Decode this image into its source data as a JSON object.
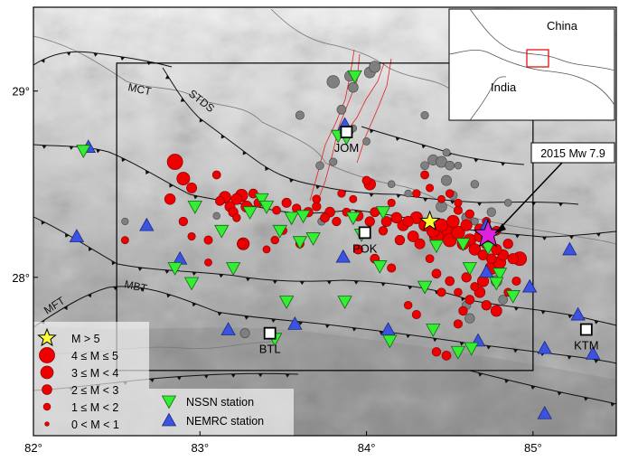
{
  "map": {
    "extent": {
      "lon": [
        82.0,
        85.5
      ],
      "lat": [
        27.15,
        29.45
      ]
    },
    "x_ticks": [
      {
        "value": 82,
        "label": "82°"
      },
      {
        "value": 83,
        "label": "83°"
      },
      {
        "value": 84,
        "label": "84°"
      },
      {
        "value": 85,
        "label": "85°"
      }
    ],
    "y_ticks": [
      {
        "value": 29,
        "label": "29°"
      },
      {
        "value": 28,
        "label": "28°"
      }
    ],
    "study_box": {
      "lon": [
        82.5,
        85.0
      ],
      "lat": [
        27.5,
        29.15
      ]
    },
    "colors": {
      "eq_fill": "#ee0000",
      "eq_gray": "#7f7f7f",
      "nssn": "#33ee33",
      "nemrc": "#3b53e0",
      "star_small": "#ffff33",
      "star_big": "#dd22dd",
      "fault": "#111111",
      "river": "#e22222",
      "relief_light": "#f0f0f0",
      "relief_dark": "#8a8a8a"
    },
    "fault_labels": [
      "MCT",
      "STDS",
      "MBT",
      "MFT"
    ],
    "cities": [
      {
        "name": "JOM",
        "lon": 83.88,
        "lat": 28.78
      },
      {
        "name": "POK",
        "lon": 83.99,
        "lat": 28.24
      },
      {
        "name": "BTL",
        "lon": 83.42,
        "lat": 27.7
      },
      {
        "name": "KTM",
        "lon": 85.32,
        "lat": 27.72
      }
    ],
    "annotation": {
      "label": "2015  Mw 7.9",
      "lon": 84.73,
      "lat": 28.23
    },
    "mainshock_star": {
      "lon": 84.73,
      "lat": 28.23
    },
    "m5_star": {
      "lon": 84.38,
      "lat": 28.3
    }
  },
  "inset": {
    "labels": [
      "China",
      "India"
    ]
  },
  "legend": {
    "magnitude": [
      {
        "symbol": "star",
        "label": "M > 5"
      },
      {
        "symbol": "circle",
        "size": 4.5,
        "label": "4 ≤ M ≤ 5"
      },
      {
        "symbol": "circle",
        "size": 3.5,
        "label": "3 ≤ M < 4"
      },
      {
        "symbol": "circle",
        "size": 2.5,
        "label": "2 ≤ M < 3"
      },
      {
        "symbol": "circle",
        "size": 1.5,
        "label": "1 ≤ M < 2"
      },
      {
        "symbol": "circle",
        "size": 0.5,
        "label": "0 < M < 1"
      }
    ],
    "stations": [
      {
        "network": "NSSN",
        "label": "NSSN station"
      },
      {
        "network": "NEMRC",
        "label": "NEMRC station"
      }
    ]
  },
  "stations": {
    "NSSN": [
      [
        82.3,
        28.68
      ],
      [
        82.97,
        28.38
      ],
      [
        83.13,
        28.25
      ],
      [
        83.3,
        28.35
      ],
      [
        83.37,
        28.42
      ],
      [
        83.4,
        28.38
      ],
      [
        83.55,
        28.32
      ],
      [
        83.62,
        28.33
      ],
      [
        83.68,
        28.21
      ],
      [
        83.6,
        28.19
      ],
      [
        83.48,
        28.25
      ],
      [
        83.2,
        28.05
      ],
      [
        82.85,
        28.05
      ],
      [
        82.95,
        27.97
      ],
      [
        83.52,
        27.87
      ],
      [
        83.87,
        27.87
      ],
      [
        83.92,
        28.32
      ],
      [
        83.97,
        28.23
      ],
      [
        84.1,
        28.35
      ],
      [
        84.08,
        28.06
      ],
      [
        84.14,
        27.66
      ],
      [
        84.35,
        27.95
      ],
      [
        84.42,
        28.17
      ],
      [
        84.4,
        27.72
      ],
      [
        84.55,
        27.6
      ],
      [
        84.58,
        28.18
      ],
      [
        84.62,
        28.05
      ],
      [
        84.73,
        28.16
      ],
      [
        84.8,
        28.02
      ],
      [
        84.88,
        27.9
      ],
      [
        84.78,
        27.97
      ],
      [
        84.63,
        27.62
      ],
      [
        83.45,
        27.67
      ],
      [
        83.83,
        28.76
      ],
      [
        83.93,
        29.08
      ],
      [
        83.88,
        28.75
      ]
    ],
    "NEMRC": [
      [
        82.33,
        28.7
      ],
      [
        82.26,
        28.22
      ],
      [
        82.68,
        28.28
      ],
      [
        82.88,
        28.1
      ],
      [
        83.17,
        27.72
      ],
      [
        83.57,
        27.75
      ],
      [
        83.86,
        28.11
      ],
      [
        83.87,
        28.82
      ],
      [
        84.13,
        27.72
      ],
      [
        84.67,
        27.66
      ],
      [
        84.72,
        28.28
      ],
      [
        84.72,
        28.03
      ],
      [
        84.98,
        27.95
      ],
      [
        85.07,
        27.62
      ],
      [
        85.07,
        27.27
      ],
      [
        85.22,
        28.15
      ],
      [
        85.27,
        27.8
      ],
      [
        85.36,
        27.59
      ]
    ]
  },
  "earthquakes": [
    [
      82.85,
      28.62,
      4.5
    ],
    [
      82.9,
      28.53,
      3.6
    ],
    [
      82.82,
      28.42,
      2.8
    ],
    [
      82.95,
      28.48,
      2.6
    ],
    [
      83.1,
      28.55,
      1.9
    ],
    [
      82.9,
      28.3,
      2.1
    ],
    [
      83.2,
      28.35,
      2.4
    ],
    [
      83.15,
      28.43,
      3.2
    ],
    [
      83.25,
      28.44,
      3.4
    ],
    [
      83.28,
      28.38,
      3.0
    ],
    [
      83.22,
      28.42,
      2.9
    ],
    [
      83.18,
      28.38,
      2.6
    ],
    [
      83.12,
      28.41,
      2.2
    ],
    [
      83.32,
      28.45,
      2.2
    ],
    [
      83.35,
      28.4,
      2.1
    ],
    [
      83.22,
      28.32,
      1.8
    ],
    [
      82.95,
      28.22,
      1.7
    ],
    [
      83.05,
      28.2,
      2.0
    ],
    [
      83.25,
      28.18,
      2.2
    ],
    [
      83.46,
      28.36,
      1.9
    ],
    [
      83.52,
      28.4,
      2.3
    ],
    [
      83.58,
      28.37,
      2.1
    ],
    [
      83.65,
      28.35,
      2.4
    ],
    [
      83.7,
      28.38,
      2.1
    ],
    [
      83.78,
      28.35,
      2.5
    ],
    [
      83.75,
      28.32,
      2.2
    ],
    [
      83.82,
      28.3,
      2.1
    ],
    [
      83.88,
      28.35,
      1.9
    ],
    [
      83.95,
      28.33,
      2.6
    ],
    [
      84.02,
      28.3,
      2.4
    ],
    [
      84.05,
      28.35,
      2.3
    ],
    [
      84.12,
      28.3,
      2.6
    ],
    [
      84.18,
      28.32,
      2.8
    ],
    [
      84.22,
      28.28,
      3.0
    ],
    [
      84.25,
      28.3,
      2.7
    ],
    [
      84.3,
      28.32,
      3.3
    ],
    [
      84.35,
      28.28,
      3.2
    ],
    [
      84.4,
      28.25,
      3.6
    ],
    [
      84.42,
      28.22,
      3.9
    ],
    [
      84.45,
      28.28,
      3.5
    ],
    [
      84.48,
      28.25,
      4.2
    ],
    [
      84.5,
      28.2,
      3.8
    ],
    [
      84.52,
      28.3,
      3.4
    ],
    [
      84.55,
      28.24,
      3.7
    ],
    [
      84.58,
      28.18,
      3.2
    ],
    [
      84.6,
      28.28,
      3.0
    ],
    [
      84.62,
      28.2,
      3.4
    ],
    [
      84.65,
      28.15,
      3.1
    ],
    [
      84.68,
      28.22,
      2.9
    ],
    [
      84.7,
      28.12,
      2.6
    ],
    [
      84.72,
      28.18,
      2.8
    ],
    [
      84.75,
      28.1,
      2.5
    ],
    [
      84.78,
      28.15,
      2.7
    ],
    [
      84.8,
      28.08,
      3.3
    ],
    [
      84.82,
      28.12,
      2.8
    ],
    [
      84.85,
      28.18,
      2.4
    ],
    [
      84.88,
      28.1,
      2.7
    ],
    [
      84.92,
      28.1,
      3.9
    ],
    [
      84.75,
      28.05,
      3.5
    ],
    [
      84.7,
      27.98,
      3.0
    ],
    [
      84.68,
      27.92,
      2.8
    ],
    [
      84.62,
      27.88,
      2.2
    ],
    [
      84.58,
      27.82,
      2.1
    ],
    [
      84.5,
      27.98,
      2.2
    ],
    [
      84.45,
      27.92,
      2.0
    ],
    [
      84.72,
      27.85,
      2.4
    ],
    [
      84.78,
      27.82,
      2.9
    ],
    [
      84.55,
      27.75,
      2.0
    ],
    [
      84.48,
      27.58,
      2.2
    ],
    [
      84.42,
      27.6,
      2.1
    ],
    [
      84.3,
      27.8,
      2.0
    ],
    [
      84.25,
      27.85,
      1.8
    ],
    [
      84.15,
      28.05,
      2.0
    ],
    [
      84.05,
      28.1,
      2.2
    ],
    [
      83.95,
      28.15,
      2.3
    ],
    [
      84.3,
      28.45,
      1.8
    ],
    [
      84.35,
      28.55,
      1.9
    ],
    [
      84.38,
      28.48,
      1.7
    ],
    [
      84.45,
      28.42,
      1.6
    ],
    [
      84.5,
      28.45,
      1.8
    ],
    [
      84.55,
      28.4,
      1.7
    ],
    [
      84.02,
      28.5,
      3.1
    ],
    [
      84.0,
      28.52,
      2.0
    ],
    [
      83.6,
      28.18,
      2.0
    ],
    [
      83.45,
      28.2,
      1.8
    ],
    [
      83.4,
      28.15,
      1.6
    ],
    [
      83.26,
      28.18,
      3.3
    ],
    [
      83.7,
      28.42,
      1.9
    ],
    [
      83.85,
      28.45,
      1.7
    ],
    [
      84.28,
      28.22,
      2.9
    ],
    [
      84.32,
      28.18,
      2.6
    ],
    [
      84.2,
      28.2,
      2.4
    ],
    [
      84.1,
      28.25,
      2.1
    ],
    [
      84.38,
      28.1,
      1.9
    ],
    [
      84.42,
      28.02,
      2.2
    ],
    [
      84.6,
      28.0,
      2.4
    ],
    [
      84.65,
      27.95,
      2.0
    ],
    [
      84.55,
      27.92,
      1.8
    ],
    [
      84.9,
      27.98,
      2.0
    ],
    [
      84.85,
      27.92,
      1.9
    ],
    [
      82.55,
      28.2,
      1.6
    ],
    [
      83.05,
      28.08,
      1.6
    ],
    [
      83.5,
      28.25,
      1.7
    ],
    [
      83.92,
      28.42,
      1.6
    ],
    [
      84.15,
      28.4,
      1.7
    ],
    [
      84.72,
      28.3,
      2.0
    ],
    [
      84.78,
      28.25,
      2.2
    ],
    [
      84.68,
      28.26,
      2.6
    ],
    [
      84.62,
      28.34,
      2.1
    ],
    [
      84.55,
      28.36,
      2.0
    ]
  ],
  "gray_events": [
    [
      83.8,
      29.05,
      3.4
    ],
    [
      83.9,
      29.08,
      2.7
    ],
    [
      84.02,
      29.1,
      2.9
    ],
    [
      84.05,
      29.13,
      3.0
    ],
    [
      83.92,
      29.02,
      2.5
    ],
    [
      83.85,
      28.9,
      2.2
    ],
    [
      83.6,
      28.87,
      2.0
    ],
    [
      83.72,
      28.6,
      1.8
    ],
    [
      83.8,
      28.62,
      1.7
    ],
    [
      84.0,
      28.73,
      1.6
    ],
    [
      83.92,
      28.8,
      1.5
    ],
    [
      84.35,
      28.87,
      1.7
    ],
    [
      84.55,
      28.6,
      1.5
    ],
    [
      84.35,
      28.6,
      1.9
    ],
    [
      84.4,
      28.63,
      2.7
    ],
    [
      84.45,
      28.62,
      2.9
    ],
    [
      84.48,
      28.52,
      2.6
    ],
    [
      84.5,
      28.6,
      2.2
    ],
    [
      84.65,
      28.5,
      1.8
    ],
    [
      84.85,
      28.4,
      1.5
    ],
    [
      84.75,
      28.35,
      2.1
    ],
    [
      84.8,
      28.05,
      2.0
    ],
    [
      84.78,
      27.98,
      2.9
    ],
    [
      84.6,
      27.85,
      2.1
    ],
    [
      84.62,
      27.78,
      2.4
    ],
    [
      84.82,
      27.88,
      2.2
    ],
    [
      84.6,
      28.32,
      2.4
    ],
    [
      84.65,
      28.3,
      1.6
    ],
    [
      82.55,
      28.3,
      1.4
    ],
    [
      83.1,
      28.33,
      1.5
    ],
    [
      83.73,
      28.3,
      1.7
    ],
    [
      84.25,
      28.45,
      1.5
    ],
    [
      83.27,
      27.7,
      2.3
    ],
    [
      84.45,
      28.38,
      2.8
    ],
    [
      84.52,
      28.44,
      2.0
    ],
    [
      84.15,
      28.5,
      1.5
    ],
    [
      84.48,
      28.67,
      1.6
    ]
  ]
}
